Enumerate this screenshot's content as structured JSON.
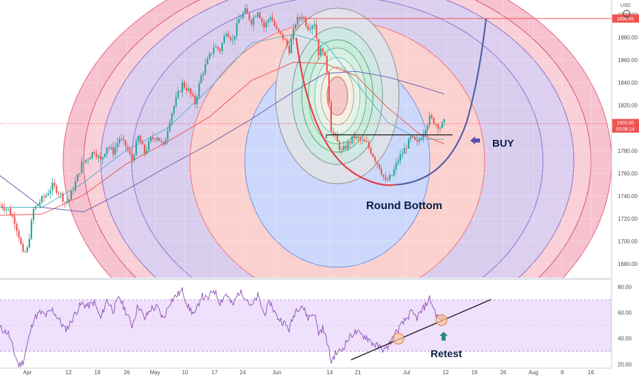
{
  "chart_data": [
    {
      "type": "candlestick",
      "title": "",
      "currency": "USD",
      "x_ticks": [
        "Apr",
        "12",
        "19",
        "26",
        "May",
        "10",
        "17",
        "24",
        "Jun",
        "14",
        "21",
        "Jul",
        "12",
        "19",
        "26",
        "Aug",
        "9",
        "16"
      ],
      "y_ticks": [
        1680,
        1700,
        1720,
        1740,
        1760,
        1780,
        1800,
        1820,
        1840,
        1860,
        1880,
        1900
      ],
      "ylim": [
        1668,
        1913
      ],
      "price_labels": {
        "resistance": {
          "value": 1896.65,
          "text": "1896.65",
          "color": "#ef5350"
        },
        "last": {
          "value": 1803.8,
          "text": "1803.80",
          "countdown": "03:06:14",
          "color": "#ef5350"
        }
      },
      "price_path": [
        [
          0,
          1732
        ],
        [
          4,
          1728
        ],
        [
          7,
          1718
        ],
        [
          9,
          1705
        ],
        [
          11,
          1688
        ],
        [
          13,
          1693
        ],
        [
          16,
          1728
        ],
        [
          19,
          1735
        ],
        [
          22,
          1741
        ],
        [
          25,
          1749
        ],
        [
          28,
          1744
        ],
        [
          31,
          1735
        ],
        [
          33,
          1737
        ],
        [
          36,
          1752
        ],
        [
          39,
          1768
        ],
        [
          42,
          1774
        ],
        [
          45,
          1780
        ],
        [
          48,
          1771
        ],
        [
          51,
          1784
        ],
        [
          54,
          1779
        ],
        [
          57,
          1791
        ],
        [
          60,
          1784
        ],
        [
          63,
          1772
        ],
        [
          66,
          1792
        ],
        [
          69,
          1778
        ],
        [
          72,
          1790
        ],
        [
          75,
          1793
        ],
        [
          78,
          1783
        ],
        [
          81,
          1808
        ],
        [
          84,
          1825
        ],
        [
          87,
          1839
        ],
        [
          90,
          1833
        ],
        [
          93,
          1822
        ],
        [
          96,
          1846
        ],
        [
          99,
          1859
        ],
        [
          102,
          1872
        ],
        [
          105,
          1869
        ],
        [
          108,
          1886
        ],
        [
          111,
          1877
        ],
        [
          114,
          1896
        ],
        [
          117,
          1903
        ],
        [
          120,
          1894
        ],
        [
          123,
          1904
        ],
        [
          126,
          1889
        ],
        [
          129,
          1899
        ],
        [
          132,
          1886
        ],
        [
          135,
          1880
        ],
        [
          138,
          1869
        ],
        [
          141,
          1893
        ],
        [
          144,
          1900
        ],
        [
          147,
          1889
        ],
        [
          150,
          1893
        ],
        [
          152,
          1866
        ],
        [
          154,
          1870
        ],
        [
          156,
          1851
        ],
        [
          158,
          1799
        ],
        [
          160,
          1791
        ],
        [
          163,
          1779
        ],
        [
          166,
          1786
        ],
        [
          169,
          1792
        ],
        [
          172,
          1789
        ],
        [
          175,
          1786
        ],
        [
          178,
          1776
        ],
        [
          181,
          1766
        ],
        [
          184,
          1752
        ],
        [
          187,
          1758
        ],
        [
          190,
          1772
        ],
        [
          193,
          1781
        ],
        [
          196,
          1791
        ],
        [
          199,
          1786
        ],
        [
          202,
          1797
        ],
        [
          205,
          1809
        ],
        [
          208,
          1804
        ],
        [
          210,
          1801
        ],
        [
          212,
          1805
        ]
      ],
      "moving_averages": [
        {
          "color": "#4fb3c4",
          "values": [
            [
              0,
              1730
            ],
            [
              20,
              1730
            ],
            [
              40,
              1752
            ],
            [
              60,
              1780
            ],
            [
              80,
              1800
            ],
            [
              100,
              1835
            ],
            [
              120,
              1875
            ],
            [
              140,
              1883
            ],
            [
              155,
              1875
            ],
            [
              170,
              1840
            ],
            [
              185,
              1805
            ],
            [
              200,
              1790
            ],
            [
              212,
              1790
            ]
          ]
        },
        {
          "color": "#ef5350",
          "values": [
            [
              0,
              1723
            ],
            [
              20,
              1724
            ],
            [
              40,
              1741
            ],
            [
              60,
              1768
            ],
            [
              80,
              1788
            ],
            [
              100,
              1810
            ],
            [
              120,
              1842
            ],
            [
              140,
              1858
            ],
            [
              155,
              1857
            ],
            [
              170,
              1846
            ],
            [
              185,
              1818
            ],
            [
              200,
              1795
            ],
            [
              212,
              1786
            ]
          ]
        },
        {
          "color": "#6b5fae",
          "values": [
            [
              0,
              1758
            ],
            [
              20,
              1730
            ],
            [
              40,
              1726
            ],
            [
              60,
              1745
            ],
            [
              80,
              1766
            ],
            [
              100,
              1786
            ],
            [
              120,
              1808
            ],
            [
              140,
              1832
            ],
            [
              155,
              1848
            ],
            [
              170,
              1850
            ],
            [
              185,
              1845
            ],
            [
              200,
              1837
            ],
            [
              212,
              1830
            ]
          ]
        }
      ],
      "annotations": [
        {
          "text": "BUY"
        },
        {
          "text": "Round Bottom"
        }
      ],
      "breakout_level": 1794,
      "bottom_level": 1750
    },
    {
      "type": "line",
      "title": "",
      "y_ticks": [
        20,
        40,
        60,
        80
      ],
      "ylim": [
        17,
        85
      ],
      "band": [
        30,
        70
      ],
      "midline": 50,
      "values": [
        [
          0,
          48
        ],
        [
          4,
          44
        ],
        [
          7,
          28
        ],
        [
          9,
          19
        ],
        [
          11,
          22
        ],
        [
          13,
          35
        ],
        [
          16,
          55
        ],
        [
          19,
          60
        ],
        [
          22,
          58
        ],
        [
          25,
          62
        ],
        [
          28,
          55
        ],
        [
          31,
          47
        ],
        [
          33,
          50
        ],
        [
          36,
          60
        ],
        [
          39,
          67
        ],
        [
          42,
          65
        ],
        [
          45,
          68
        ],
        [
          48,
          55
        ],
        [
          51,
          70
        ],
        [
          54,
          62
        ],
        [
          57,
          72
        ],
        [
          60,
          61
        ],
        [
          63,
          50
        ],
        [
          66,
          66
        ],
        [
          69,
          55
        ],
        [
          72,
          63
        ],
        [
          75,
          64
        ],
        [
          78,
          55
        ],
        [
          81,
          68
        ],
        [
          84,
          73
        ],
        [
          87,
          77
        ],
        [
          90,
          64
        ],
        [
          93,
          58
        ],
        [
          96,
          73
        ],
        [
          99,
          70
        ],
        [
          102,
          78
        ],
        [
          105,
          68
        ],
        [
          108,
          75
        ],
        [
          111,
          65
        ],
        [
          114,
          76
        ],
        [
          117,
          73
        ],
        [
          120,
          64
        ],
        [
          123,
          73
        ],
        [
          126,
          59
        ],
        [
          129,
          68
        ],
        [
          132,
          57
        ],
        [
          135,
          53
        ],
        [
          138,
          47
        ],
        [
          141,
          62
        ],
        [
          144,
          66
        ],
        [
          147,
          56
        ],
        [
          150,
          60
        ],
        [
          152,
          44
        ],
        [
          154,
          48
        ],
        [
          156,
          38
        ],
        [
          158,
          22
        ],
        [
          160,
          28
        ],
        [
          163,
          31
        ],
        [
          166,
          39
        ],
        [
          169,
          45
        ],
        [
          172,
          43
        ],
        [
          175,
          41
        ],
        [
          178,
          36
        ],
        [
          181,
          33
        ],
        [
          184,
          31
        ],
        [
          187,
          39
        ],
        [
          190,
          47
        ],
        [
          193,
          53
        ],
        [
          196,
          60
        ],
        [
          199,
          56
        ],
        [
          202,
          63
        ],
        [
          205,
          71
        ],
        [
          208,
          59
        ],
        [
          210,
          54
        ],
        [
          212,
          56
        ]
      ],
      "color": "#9156b8",
      "annotations": [
        {
          "text": "Retest"
        }
      ]
    }
  ]
}
